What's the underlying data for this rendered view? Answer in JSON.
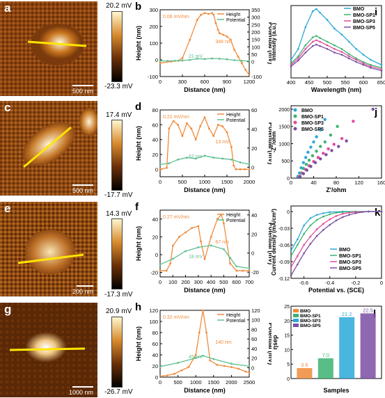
{
  "panels": {
    "a": {
      "label": "a",
      "scale": "500 nm",
      "cmax": "20.2 mV",
      "cmin": "-23.3 mV"
    },
    "c": {
      "label": "c",
      "scale": "500 nm",
      "cmax": "17.4 mV",
      "cmin": "-17.7 mV"
    },
    "e": {
      "label": "e",
      "scale": "200 nm",
      "cmax": "14.3 mV",
      "cmin": "-17.3 mV"
    },
    "g": {
      "label": "g",
      "scale": "1000 nm",
      "cmax": "20.9 mV",
      "cmin": "-26.7 mV"
    }
  },
  "colors": {
    "height": "#f08a3a",
    "potential": "#5fbf8f",
    "bmo": "#2aa8d8",
    "sp1": "#3cb371",
    "sp3": "#e44b9a",
    "sp5": "#7a4ea3"
  },
  "chart_data": [
    {
      "id": "b",
      "type": "line",
      "label": "b",
      "xlabel": "Distance (nm)",
      "ylabel": "Height (nm)",
      "y2label": "Potential (mV)",
      "xlim": [
        0,
        1200
      ],
      "ylim": [
        -100,
        300
      ],
      "y2lim": [
        -100,
        350
      ],
      "xticks": [
        0,
        300,
        600,
        900,
        1200
      ],
      "yticks": [
        -100,
        0,
        100,
        200,
        300
      ],
      "y2ticks": [
        -100,
        0,
        50,
        100,
        150,
        200,
        250,
        300,
        350
      ],
      "legend": [
        "Height",
        "Potential"
      ],
      "annotations": [
        "0.06 mV/nm",
        "346 nm",
        "21 mV"
      ],
      "series": [
        {
          "name": "Height",
          "x": [
            0,
            150,
            250,
            300,
            400,
            500,
            550,
            600,
            650,
            700,
            720,
            750,
            780,
            800,
            850,
            900,
            950,
            1000,
            1050,
            1100,
            1150,
            1200
          ],
          "y": [
            -20,
            -10,
            -5,
            10,
            120,
            240,
            270,
            280,
            275,
            280,
            270,
            220,
            180,
            160,
            150,
            140,
            120,
            60,
            20,
            -20,
            -60,
            -90
          ]
        },
        {
          "name": "Potential",
          "x": [
            0,
            100,
            200,
            300,
            400,
            500,
            600,
            700,
            800,
            900,
            1000,
            1100,
            1200
          ],
          "y": [
            5,
            5,
            6,
            8,
            12,
            20,
            18,
            22,
            20,
            16,
            10,
            6,
            5
          ]
        }
      ]
    },
    {
      "id": "d",
      "type": "line",
      "label": "d",
      "xlabel": "Distance (nm)",
      "ylabel": "Height (nm)",
      "y2label": "Potential (mV)",
      "xlim": [
        0,
        2000
      ],
      "ylim": [
        -10,
        80
      ],
      "y2lim": [
        -10,
        60
      ],
      "xticks": [
        0,
        500,
        1000,
        1500,
        2000
      ],
      "yticks": [
        0,
        20,
        40,
        60,
        80
      ],
      "y2ticks": [
        0,
        20,
        40,
        60
      ],
      "legend": [
        "Height",
        "Potential"
      ],
      "annotations": [
        "0.21 mV/nm",
        "13 mV",
        "62 nm"
      ],
      "series": [
        {
          "name": "Height",
          "x": [
            0,
            150,
            200,
            300,
            400,
            500,
            600,
            700,
            800,
            900,
            1000,
            1100,
            1200,
            1300,
            1400,
            1500,
            1600,
            1650,
            1700,
            1800,
            1900,
            2000
          ],
          "y": [
            0,
            2,
            55,
            65,
            60,
            45,
            62,
            55,
            40,
            58,
            70,
            55,
            45,
            60,
            58,
            50,
            30,
            5,
            0,
            0,
            0,
            0
          ]
        },
        {
          "name": "Potential",
          "x": [
            0,
            200,
            400,
            600,
            800,
            1000,
            1200,
            1400,
            1600,
            1800,
            2000
          ],
          "y": [
            3,
            4,
            8,
            10,
            9,
            12,
            10,
            9,
            8,
            5,
            3
          ]
        }
      ]
    },
    {
      "id": "f",
      "type": "line",
      "label": "f",
      "xlabel": "Distance (nm)",
      "ylabel": "Height (nm)",
      "y2label": "Potential (mV)",
      "xlim": [
        0,
        700
      ],
      "ylim": [
        -25,
        50
      ],
      "y2lim": [
        -25,
        45
      ],
      "xticks": [
        0,
        100,
        200,
        300,
        400,
        500,
        600,
        700
      ],
      "yticks": [
        -20,
        0,
        20,
        40
      ],
      "y2ticks": [
        -20,
        0,
        20,
        40
      ],
      "legend": [
        "Height",
        "Potential"
      ],
      "annotations": [
        "0.27 mV/nm",
        "67 nm",
        "18 mV"
      ],
      "series": [
        {
          "name": "Height",
          "x": [
            0,
            50,
            80,
            100,
            150,
            200,
            250,
            300,
            320,
            350,
            400,
            450,
            480,
            500,
            550,
            600,
            650,
            700
          ],
          "y": [
            -18,
            -18,
            -10,
            10,
            20,
            25,
            30,
            32,
            15,
            -5,
            20,
            40,
            45,
            35,
            -10,
            -18,
            -18,
            -18
          ]
        },
        {
          "name": "Potential",
          "x": [
            0,
            100,
            200,
            300,
            400,
            500,
            550,
            600,
            700
          ],
          "y": [
            -12,
            -6,
            2,
            6,
            8,
            4,
            -5,
            -14,
            -16
          ]
        }
      ]
    },
    {
      "id": "h",
      "type": "line",
      "label": "h",
      "xlabel": "Distance (nm)",
      "ylabel": "Height (nm)",
      "y2label": "Potential (mV)",
      "xlim": [
        0,
        2500
      ],
      "ylim": [
        0,
        120
      ],
      "y2lim": [
        -20,
        120
      ],
      "xticks": [
        0,
        500,
        1000,
        1500,
        2000,
        2500
      ],
      "yticks": [
        0,
        20,
        40,
        60,
        80,
        100,
        120
      ],
      "y2ticks": [
        0,
        20,
        40,
        60,
        80,
        100,
        120
      ],
      "legend": [
        "Height",
        "Potential"
      ],
      "annotations": [
        "0.32 mV/nm",
        "140 nm",
        "45 mV"
      ],
      "series": [
        {
          "name": "Height",
          "x": [
            0,
            200,
            400,
            600,
            800,
            1000,
            1100,
            1200,
            1300,
            1400,
            1600,
            1800,
            2000,
            2200,
            2400,
            2500
          ],
          "y": [
            2,
            3,
            6,
            12,
            18,
            40,
            80,
            120,
            80,
            30,
            22,
            20,
            18,
            15,
            10,
            8
          ]
        },
        {
          "name": "Potential",
          "x": [
            0,
            500,
            1000,
            1200,
            1500,
            2000,
            2500
          ],
          "y": [
            2,
            10,
            20,
            25,
            18,
            8,
            3
          ]
        }
      ]
    },
    {
      "id": "i",
      "type": "line",
      "label": "i",
      "xlabel": "Wavelength (nm)",
      "ylabel": "Intensity (a.u.)",
      "xlim": [
        400,
        650
      ],
      "xticks": [
        400,
        450,
        500,
        550,
        600,
        650
      ],
      "legend": [
        "BMO",
        "BMO-SP1",
        "BMO-SP3",
        "BMO-SP5"
      ],
      "series": [
        {
          "name": "BMO",
          "x": [
            400,
            420,
            440,
            460,
            470,
            480,
            500,
            520,
            540,
            560,
            580,
            600,
            620,
            650
          ],
          "y": [
            0.25,
            0.4,
            0.7,
            0.92,
            0.95,
            0.9,
            0.8,
            0.68,
            0.6,
            0.5,
            0.4,
            0.32,
            0.25,
            0.18
          ]
        },
        {
          "name": "BMO-SP1",
          "x": [
            400,
            420,
            440,
            460,
            470,
            480,
            500,
            520,
            540,
            560,
            580,
            600,
            620,
            650
          ],
          "y": [
            0.2,
            0.3,
            0.45,
            0.56,
            0.58,
            0.55,
            0.5,
            0.45,
            0.4,
            0.33,
            0.27,
            0.22,
            0.18,
            0.14
          ]
        },
        {
          "name": "BMO-SP3",
          "x": [
            400,
            420,
            440,
            460,
            470,
            480,
            500,
            520,
            540,
            560,
            580,
            600,
            620,
            650
          ],
          "y": [
            0.18,
            0.27,
            0.4,
            0.5,
            0.52,
            0.5,
            0.45,
            0.4,
            0.36,
            0.3,
            0.25,
            0.2,
            0.16,
            0.12
          ]
        },
        {
          "name": "BMO-SP5",
          "x": [
            400,
            420,
            440,
            460,
            470,
            480,
            500,
            520,
            540,
            560,
            580,
            600,
            620,
            650
          ],
          "y": [
            0.16,
            0.24,
            0.35,
            0.44,
            0.46,
            0.44,
            0.4,
            0.35,
            0.32,
            0.27,
            0.22,
            0.18,
            0.14,
            0.1
          ]
        }
      ]
    },
    {
      "id": "j",
      "type": "scatter",
      "label": "j",
      "xlabel": "Z'/ohm",
      "ylabel": "-Z''/ohm",
      "xlim": [
        0,
        160
      ],
      "ylim": [
        0,
        2100
      ],
      "xticks": [
        0,
        40,
        80,
        120,
        160
      ],
      "yticks": [
        0,
        500,
        1000,
        1500,
        2000
      ],
      "legend": [
        "BMO",
        "BMO-SP1",
        "BMO-SP3",
        "BMO-SP5"
      ],
      "series": [
        {
          "name": "BMO",
          "x": [
            12,
            15,
            18,
            22,
            26,
            30,
            35,
            40,
            45,
            52,
            60
          ],
          "y": [
            50,
            150,
            300,
            450,
            600,
            750,
            900,
            1050,
            1200,
            1400,
            1700
          ]
        },
        {
          "name": "BMO-SP1",
          "x": [
            14,
            18,
            22,
            27,
            32,
            38,
            45,
            52,
            60,
            70,
            82
          ],
          "y": [
            50,
            150,
            280,
            400,
            520,
            650,
            780,
            920,
            1050,
            1250,
            1500
          ]
        },
        {
          "name": "BMO-SP3",
          "x": [
            15,
            20,
            26,
            32,
            40,
            48,
            57,
            66,
            76,
            90,
            110
          ],
          "y": [
            50,
            140,
            250,
            360,
            480,
            600,
            720,
            850,
            980,
            1150,
            1650
          ]
        },
        {
          "name": "BMO-SP5",
          "x": [
            16,
            22,
            28,
            35,
            43,
            52,
            62,
            72,
            84,
            98,
            145
          ],
          "y": [
            50,
            130,
            230,
            340,
            450,
            560,
            680,
            800,
            920,
            1080,
            2000
          ]
        }
      ]
    },
    {
      "id": "k",
      "type": "line",
      "label": "k",
      "xlabel": "Potential vs. (SCE)",
      "ylabel": "Current density (mA/cm²)",
      "xlim": [
        -0.7,
        0
      ],
      "ylim": [
        -0.12,
        0.01
      ],
      "xticks": [
        -0.6,
        -0.4,
        -0.2,
        0.0
      ],
      "yticks": [
        0.0,
        -0.03,
        -0.06,
        -0.09,
        -0.12
      ],
      "legend": [
        "BMO",
        "BMO-SP1",
        "BMO-SP3",
        "BMO-SP5"
      ],
      "series": [
        {
          "name": "BMO",
          "x": [
            -0.7,
            -0.65,
            -0.6,
            -0.55,
            -0.5,
            -0.45,
            -0.4,
            -0.3,
            -0.2,
            -0.1,
            0
          ],
          "y": [
            -0.07,
            -0.05,
            -0.025,
            -0.012,
            -0.006,
            -0.003,
            -0.001,
            0,
            0,
            0,
            0
          ]
        },
        {
          "name": "BMO-SP1",
          "x": [
            -0.7,
            -0.65,
            -0.6,
            -0.55,
            -0.5,
            -0.45,
            -0.4,
            -0.35,
            -0.3,
            -0.2,
            -0.1,
            0
          ],
          "y": [
            -0.08,
            -0.06,
            -0.04,
            -0.025,
            -0.015,
            -0.009,
            -0.005,
            -0.002,
            -0.001,
            0,
            0,
            0
          ]
        },
        {
          "name": "BMO-SP3",
          "x": [
            -0.7,
            -0.65,
            -0.6,
            -0.55,
            -0.5,
            -0.45,
            -0.4,
            -0.35,
            -0.3,
            -0.25,
            -0.2,
            -0.1,
            0
          ],
          "y": [
            -0.1,
            -0.08,
            -0.06,
            -0.045,
            -0.032,
            -0.022,
            -0.014,
            -0.008,
            -0.004,
            -0.002,
            -0.001,
            0,
            0
          ]
        },
        {
          "name": "BMO-SP5",
          "x": [
            -0.7,
            -0.65,
            -0.6,
            -0.55,
            -0.5,
            -0.45,
            -0.4,
            -0.35,
            -0.3,
            -0.25,
            -0.2,
            -0.15,
            -0.1,
            0
          ],
          "y": [
            -0.115,
            -0.095,
            -0.075,
            -0.058,
            -0.044,
            -0.033,
            -0.024,
            -0.016,
            -0.01,
            -0.006,
            -0.003,
            -0.001,
            0,
            0
          ]
        }
      ]
    },
    {
      "id": "l",
      "type": "bar",
      "label": "l",
      "xlabel": "Samples",
      "ylabel": "ηsep",
      "ylim": [
        0,
        25
      ],
      "yticks": [
        0,
        5,
        10,
        15,
        20,
        25
      ],
      "categories": [
        "BMO",
        "BMO-SP1",
        "BMO-SP3",
        "BMO-SP5"
      ],
      "values": [
        3.6,
        7.0,
        21.2,
        22.5
      ],
      "value_labels": [
        "3.6",
        "7.0",
        "21.2",
        "22.5"
      ],
      "legend": [
        "BMO",
        "BMO-SP1",
        "BMO-SP3",
        "BMO-SP5"
      ]
    }
  ]
}
